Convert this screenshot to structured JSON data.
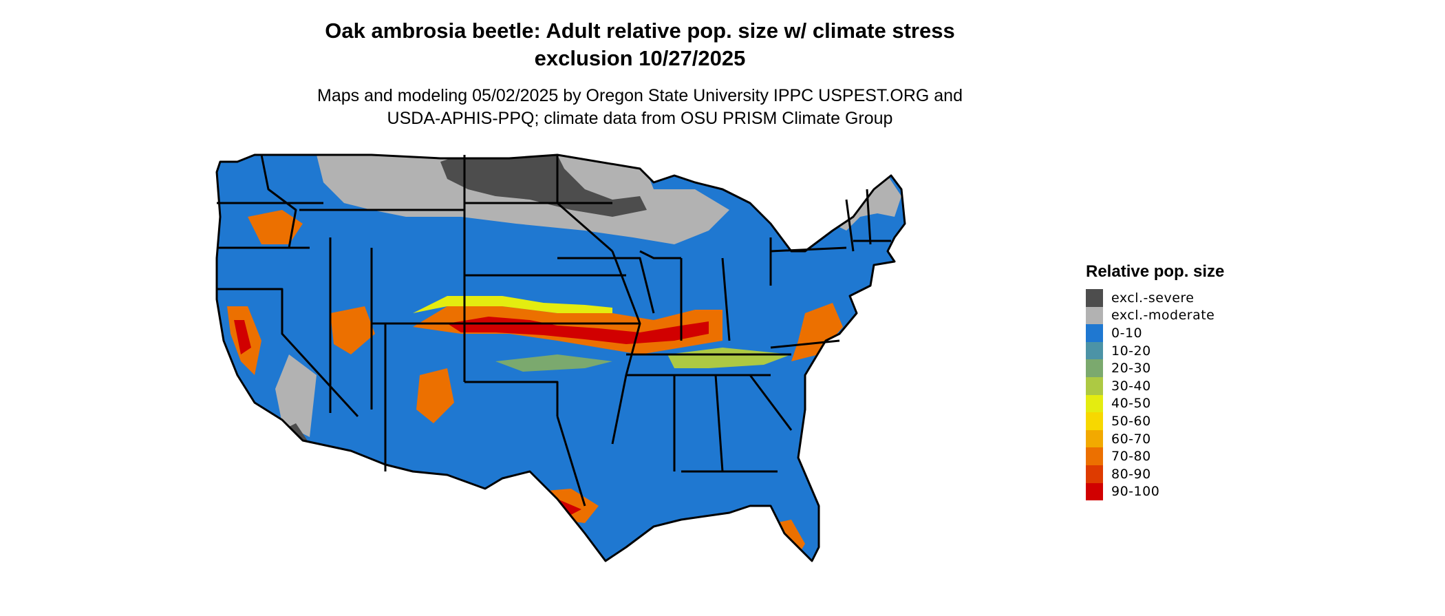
{
  "title": {
    "line1": "Oak ambrosia beetle: Adult relative pop. size w/ climate stress",
    "line2": "exclusion 10/27/2025"
  },
  "subtitle": {
    "line1": "Maps and modeling 05/02/2025 by Oregon State University IPPC USPEST.ORG and",
    "line2": "USDA-APHIS-PPQ; climate data from OSU PRISM Climate Group"
  },
  "legend": {
    "title": "Relative pop. size",
    "items": [
      {
        "label": "excl.-severe",
        "color": "#4d4d4d"
      },
      {
        "label": "excl.-moderate",
        "color": "#b2b2b2"
      },
      {
        "label": "0-10",
        "color": "#1f78d1"
      },
      {
        "label": "10-20",
        "color": "#4c93a6"
      },
      {
        "label": "20-30",
        "color": "#7ba96e"
      },
      {
        "label": "30-40",
        "color": "#adc943"
      },
      {
        "label": "40-50",
        "color": "#e4ec10"
      },
      {
        "label": "50-60",
        "color": "#f7d800"
      },
      {
        "label": "60-70",
        "color": "#f2a900"
      },
      {
        "label": "70-80",
        "color": "#ec7000"
      },
      {
        "label": "80-90",
        "color": "#de3b00"
      },
      {
        "label": "90-100",
        "color": "#d10000"
      }
    ]
  }
}
